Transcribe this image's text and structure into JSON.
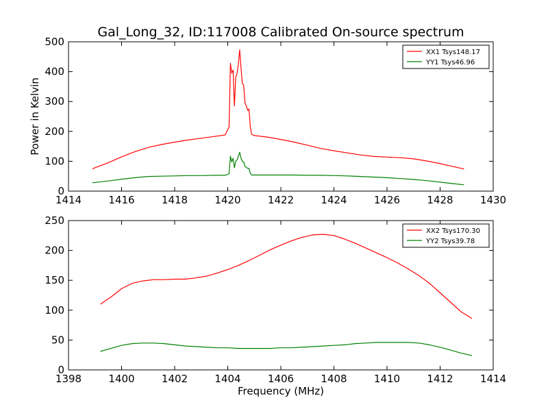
{
  "figure": {
    "title": "Gal_Long_32, ID:117008 Calibrated On-source spectrum"
  },
  "chart_data": [
    {
      "type": "line",
      "ylabel": "Power in Kelvin",
      "xlabel": "",
      "xlim": [
        1414,
        1430
      ],
      "ylim": [
        0,
        500
      ],
      "xticks": [
        "1414",
        "1416",
        "1418",
        "1420",
        "1422",
        "1424",
        "1426",
        "1428",
        "1430"
      ],
      "yticks": [
        "0",
        "100",
        "200",
        "300",
        "400",
        "500"
      ],
      "legend_position": "top-right",
      "series": [
        {
          "name": "XX1 Tsys148.17",
          "color": "#ff0000",
          "x": [
            1414.9,
            1415.5,
            1416.0,
            1416.5,
            1417.0,
            1417.5,
            1418.0,
            1418.5,
            1419.0,
            1419.5,
            1419.9,
            1420.05,
            1420.1,
            1420.15,
            1420.2,
            1420.25,
            1420.3,
            1420.35,
            1420.4,
            1420.45,
            1420.5,
            1420.55,
            1420.6,
            1420.65,
            1420.7,
            1420.75,
            1420.8,
            1420.85,
            1420.9,
            1420.95,
            1421.0,
            1421.5,
            1422.0,
            1422.5,
            1423.0,
            1423.5,
            1424.0,
            1424.5,
            1425.0,
            1425.5,
            1426.0,
            1426.5,
            1427.0,
            1427.5,
            1428.0,
            1428.5,
            1428.9
          ],
          "y": [
            75,
            95,
            115,
            132,
            146,
            156,
            164,
            171,
            177,
            183,
            188,
            215,
            428,
            395,
            405,
            285,
            380,
            395,
            425,
            473,
            410,
            360,
            355,
            295,
            285,
            270,
            275,
            215,
            190,
            188,
            186,
            181,
            173,
            164,
            154,
            143,
            135,
            128,
            121,
            116,
            114,
            112,
            108,
            101,
            92,
            82,
            74
          ]
        },
        {
          "name": "YY1 Tsys46.96",
          "color": "#008000",
          "x": [
            1414.9,
            1415.5,
            1416.0,
            1416.5,
            1417.0,
            1417.5,
            1418.0,
            1418.5,
            1419.0,
            1419.5,
            1419.9,
            1420.05,
            1420.1,
            1420.15,
            1420.2,
            1420.25,
            1420.3,
            1420.35,
            1420.4,
            1420.45,
            1420.5,
            1420.55,
            1420.6,
            1420.65,
            1420.7,
            1420.75,
            1420.8,
            1420.85,
            1420.9,
            1420.95,
            1421.0,
            1421.5,
            1422.0,
            1422.5,
            1423.0,
            1423.5,
            1424.0,
            1424.5,
            1425.0,
            1425.5,
            1426.0,
            1426.5,
            1427.0,
            1427.5,
            1428.0,
            1428.5,
            1428.9
          ],
          "y": [
            28,
            34,
            40,
            45,
            49,
            50,
            51,
            52,
            52,
            53,
            53,
            58,
            117,
            98,
            110,
            78,
            100,
            105,
            117,
            130,
            110,
            100,
            98,
            82,
            80,
            76,
            76,
            60,
            54,
            54,
            54,
            54,
            54,
            54,
            53,
            53,
            52,
            51,
            49,
            47,
            45,
            42,
            39,
            35,
            30,
            25,
            21
          ]
        }
      ]
    },
    {
      "type": "line",
      "ylabel": "",
      "xlabel": "Frequency (MHz)",
      "xlim": [
        1398,
        1414
      ],
      "ylim": [
        0,
        250
      ],
      "xticks": [
        "1398",
        "1400",
        "1402",
        "1404",
        "1406",
        "1408",
        "1410",
        "1412",
        "1414"
      ],
      "yticks": [
        "0",
        "50",
        "100",
        "150",
        "200",
        "250"
      ],
      "legend_position": "top-right",
      "series": [
        {
          "name": "XX2 Tsys170.30",
          "color": "#ff0000",
          "x": [
            1399.2,
            1399.6,
            1400.0,
            1400.4,
            1400.8,
            1401.2,
            1401.6,
            1402.0,
            1402.4,
            1402.8,
            1403.2,
            1403.6,
            1404.0,
            1404.4,
            1404.8,
            1405.2,
            1405.6,
            1406.0,
            1406.4,
            1406.8,
            1407.2,
            1407.6,
            1408.0,
            1408.4,
            1408.8,
            1409.2,
            1409.6,
            1410.0,
            1410.4,
            1410.8,
            1411.2,
            1411.6,
            1412.0,
            1412.4,
            1412.8,
            1413.2
          ],
          "y": [
            110,
            122,
            136,
            145,
            149,
            151,
            151,
            152,
            152,
            154,
            157,
            162,
            168,
            175,
            183,
            192,
            201,
            209,
            216,
            222,
            226,
            227,
            225,
            219,
            212,
            204,
            196,
            188,
            179,
            169,
            158,
            145,
            129,
            113,
            97,
            86
          ]
        },
        {
          "name": "YY2 Tsys39.78",
          "color": "#008000",
          "x": [
            1399.2,
            1399.6,
            1400.0,
            1400.4,
            1400.8,
            1401.2,
            1401.6,
            1402.0,
            1402.4,
            1402.8,
            1403.2,
            1403.6,
            1404.0,
            1404.4,
            1404.8,
            1405.2,
            1405.6,
            1406.0,
            1406.4,
            1406.8,
            1407.2,
            1407.6,
            1408.0,
            1408.4,
            1408.8,
            1409.2,
            1409.6,
            1410.0,
            1410.4,
            1410.8,
            1411.2,
            1411.6,
            1412.0,
            1412.4,
            1412.8,
            1413.2
          ],
          "y": [
            31,
            36,
            41,
            44,
            45,
            45,
            44,
            42,
            40,
            39,
            38,
            37,
            37,
            36,
            36,
            36,
            36,
            37,
            37,
            38,
            39,
            40,
            41,
            42,
            44,
            45,
            46,
            46,
            46,
            46,
            45,
            42,
            38,
            33,
            28,
            24
          ]
        }
      ]
    }
  ]
}
